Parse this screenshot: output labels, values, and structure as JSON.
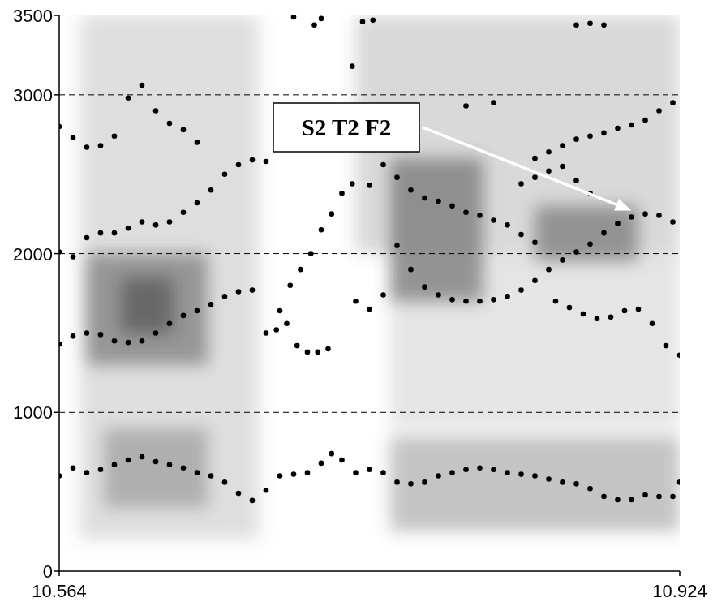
{
  "chart_data": {
    "type": "scatter",
    "color": "#000000",
    "marker": "circle",
    "grid": true,
    "xlim": [
      10.564,
      10.924
    ],
    "xticks": [
      10.564,
      10.924
    ],
    "ylim": [
      0,
      3500
    ],
    "yticks": [
      0,
      1000,
      2000,
      3000,
      3500
    ],
    "annotations": [
      {
        "text": "S2 T2 F2",
        "x": 10.896,
        "y": 2230
      }
    ],
    "energy_regions": [
      {
        "x": [
          10.576,
          10.68
        ],
        "y": [
          200,
          3500
        ],
        "level": 0.25
      },
      {
        "x": [
          10.58,
          10.65
        ],
        "y": [
          1300,
          2000
        ],
        "level": 0.7
      },
      {
        "x": [
          10.6,
          10.63
        ],
        "y": [
          1500,
          1850
        ],
        "level": 0.9
      },
      {
        "x": [
          10.59,
          10.65
        ],
        "y": [
          400,
          900
        ],
        "level": 0.45
      },
      {
        "x": [
          10.736,
          10.924
        ],
        "y": [
          2000,
          3500
        ],
        "level": 0.3
      },
      {
        "x": [
          10.756,
          10.924
        ],
        "y": [
          250,
          850
        ],
        "level": 0.45
      },
      {
        "x": [
          10.756,
          10.924
        ],
        "y": [
          900,
          2000
        ],
        "level": 0.2
      },
      {
        "x": [
          10.756,
          10.81
        ],
        "y": [
          1700,
          2600
        ],
        "level": 0.75
      },
      {
        "x": [
          10.84,
          10.9
        ],
        "y": [
          1950,
          2300
        ],
        "level": 0.7
      }
    ],
    "series": [
      {
        "x": [
          10.564,
          10.572,
          10.58,
          10.588,
          10.596,
          10.604,
          10.612,
          10.62,
          10.628,
          10.636,
          10.644,
          10.652,
          10.66,
          10.668,
          10.676,
          10.684,
          10.692,
          10.7,
          10.708,
          10.716,
          10.722,
          10.728,
          10.736,
          10.744,
          10.752,
          10.76,
          10.768,
          10.776,
          10.784,
          10.792,
          10.8,
          10.808,
          10.816,
          10.824,
          10.832,
          10.84,
          10.848,
          10.856,
          10.864,
          10.872,
          10.88,
          10.888,
          10.896,
          10.904,
          10.912,
          10.92,
          10.924
        ],
        "values": [
          600,
          650,
          620,
          640,
          670,
          700,
          720,
          690,
          670,
          650,
          620,
          600,
          560,
          490,
          445,
          510,
          600,
          610,
          620,
          680,
          740,
          700,
          620,
          640,
          620,
          560,
          550,
          560,
          600,
          620,
          640,
          650,
          640,
          620,
          610,
          600,
          580,
          560,
          550,
          520,
          470,
          450,
          450,
          480,
          470,
          470,
          560
        ]
      },
      {
        "x": [
          10.564,
          10.572,
          10.58,
          10.588,
          10.596,
          10.604,
          10.612,
          10.62,
          10.628,
          10.636,
          10.644,
          10.652,
          10.66,
          10.668,
          10.676,
          10.684,
          10.69
        ],
        "values": [
          1430,
          1480,
          1500,
          1490,
          1450,
          1440,
          1450,
          1500,
          1560,
          1610,
          1640,
          1680,
          1730,
          1760,
          1770,
          1500,
          1520
        ]
      },
      {
        "x": [
          10.588,
          10.596,
          10.604,
          10.612,
          10.62,
          10.628,
          10.636,
          10.644,
          10.652,
          10.66,
          10.668,
          10.676,
          10.684
        ],
        "values": [
          2130,
          2130,
          2160,
          2200,
          2180,
          2200,
          2260,
          2320,
          2400,
          2500,
          2560,
          2590,
          2580
        ]
      },
      {
        "x": [
          10.564,
          10.572,
          10.58,
          10.588,
          10.596,
          10.604,
          10.612,
          10.62,
          10.628,
          10.636,
          10.644
        ],
        "values": [
          2800,
          2730,
          2670,
          2680,
          2740,
          2980,
          3060,
          2900,
          2820,
          2780,
          2700
        ]
      },
      {
        "x": [
          10.564,
          10.572,
          10.58
        ],
        "values": [
          2010,
          1980,
          2100
        ]
      },
      {
        "x": [
          10.692,
          10.698,
          10.704,
          10.71,
          10.716,
          10.722,
          10.728,
          10.734
        ],
        "values": [
          1640,
          1800,
          1900,
          2000,
          2150,
          2250,
          2380,
          2440
        ]
      },
      {
        "x": [
          10.696,
          10.702,
          10.708,
          10.714,
          10.72
        ],
        "values": [
          1560,
          1420,
          1380,
          1380,
          1400
        ]
      },
      {
        "x": [
          10.736,
          10.744,
          10.752,
          10.76,
          10.768,
          10.776,
          10.784,
          10.792,
          10.8,
          10.808,
          10.816,
          10.824,
          10.832,
          10.84,
          10.848,
          10.856,
          10.864,
          10.872,
          10.88,
          10.888,
          10.896,
          10.904,
          10.912,
          10.92
        ],
        "values": [
          1700,
          1650,
          1740,
          2050,
          1900,
          1790,
          1740,
          1710,
          1700,
          1700,
          1710,
          1730,
          1770,
          1830,
          1900,
          1960,
          2010,
          2060,
          2130,
          2190,
          2230,
          2250,
          2240,
          2200
        ]
      },
      {
        "x": [
          10.744,
          10.752,
          10.76,
          10.768,
          10.776,
          10.784,
          10.792,
          10.8,
          10.808,
          10.816,
          10.824,
          10.832,
          10.84
        ],
        "values": [
          2430,
          2560,
          2480,
          2400,
          2350,
          2330,
          2300,
          2260,
          2240,
          2210,
          2180,
          2120,
          2070
        ]
      },
      {
        "x": [
          10.852,
          10.86,
          10.868,
          10.876,
          10.884,
          10.892,
          10.9,
          10.908,
          10.916,
          10.924
        ],
        "values": [
          1700,
          1660,
          1620,
          1590,
          1600,
          1640,
          1650,
          1560,
          1420,
          1360
        ]
      },
      {
        "x": [
          10.84,
          10.848,
          10.856,
          10.864,
          10.872,
          10.88,
          10.888,
          10.896,
          10.904,
          10.912,
          10.92
        ],
        "values": [
          2600,
          2640,
          2680,
          2720,
          2740,
          2760,
          2790,
          2810,
          2840,
          2900,
          2950
        ]
      },
      {
        "x": [
          10.832,
          10.84,
          10.848,
          10.856,
          10.864,
          10.872
        ],
        "values": [
          2440,
          2480,
          2520,
          2550,
          2460,
          2380
        ]
      },
      {
        "x": [
          10.7,
          10.712,
          10.716,
          10.734,
          10.74,
          10.746,
          10.8,
          10.816,
          10.864,
          10.872,
          10.88
        ],
        "values": [
          3490,
          3440,
          3480,
          3180,
          3460,
          3470,
          2930,
          2950,
          3440,
          3450,
          3440
        ]
      }
    ]
  }
}
